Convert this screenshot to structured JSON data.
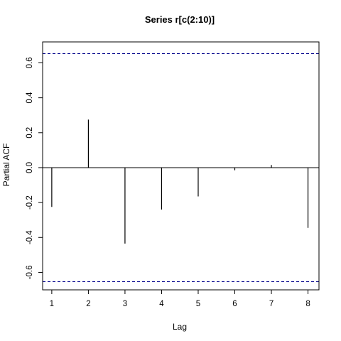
{
  "chart_data": {
    "type": "bar",
    "title": "Series  r[c(2:10)]",
    "xlabel": "Lag",
    "ylabel": "Partial ACF",
    "x": [
      1,
      2,
      3,
      4,
      5,
      6,
      7,
      8
    ],
    "values": [
      -0.225,
      0.275,
      -0.435,
      -0.24,
      -0.165,
      -0.015,
      0.015,
      -0.345
    ],
    "xlim": [
      0.75,
      8.3
    ],
    "ylim": [
      -0.7,
      0.72
    ],
    "x_ticks": [
      1,
      2,
      3,
      4,
      5,
      6,
      7,
      8
    ],
    "x_tick_labels": [
      "1",
      "2",
      "3",
      "4",
      "5",
      "6",
      "7",
      "8"
    ],
    "y_ticks": [
      -0.6,
      -0.4,
      -0.2,
      0.0,
      0.2,
      0.4,
      0.6
    ],
    "y_tick_labels": [
      "-0.6",
      "-0.4",
      "-0.2",
      "0.0",
      "0.2",
      "0.4",
      "0.6"
    ],
    "confidence_bounds": [
      0.653,
      -0.653
    ],
    "zero_line": 0,
    "grid": false,
    "colors": {
      "bars": "#000000",
      "confidence": "#00008b",
      "axes": "#000000"
    }
  }
}
